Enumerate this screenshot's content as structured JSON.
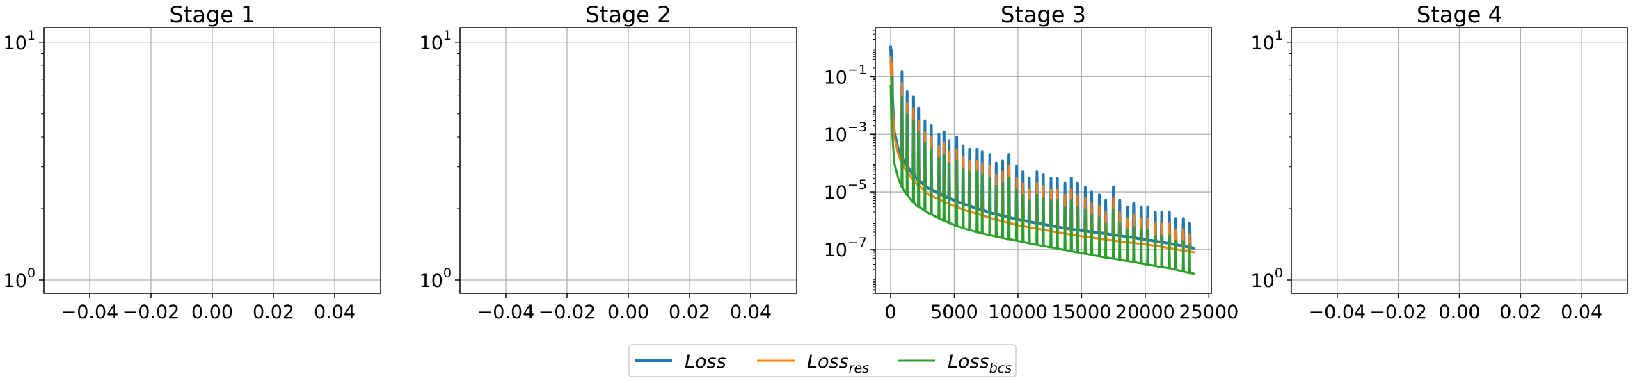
{
  "chart_data": [
    {
      "type": "line",
      "title": "Stage 1",
      "yscale": "log",
      "xlim": [
        -0.055,
        0.055
      ],
      "ylim": [
        0.88,
        11.5
      ],
      "xticks": [
        -0.04,
        -0.02,
        0.0,
        0.02,
        0.04
      ],
      "xtick_labels": [
        "−0.04",
        "−0.02",
        "0.00",
        "0.02",
        "0.04"
      ],
      "yticks": [
        1,
        10
      ],
      "ytick_labels": [
        {
          "base": "10",
          "exp": "0"
        },
        {
          "base": "10",
          "exp": "1"
        }
      ],
      "grid": true,
      "series": []
    },
    {
      "type": "line",
      "title": "Stage 2",
      "yscale": "log",
      "xlim": [
        -0.055,
        0.055
      ],
      "ylim": [
        0.88,
        11.5
      ],
      "xticks": [
        -0.04,
        -0.02,
        0.0,
        0.02,
        0.04
      ],
      "xtick_labels": [
        "−0.04",
        "−0.02",
        "0.00",
        "0.02",
        "0.04"
      ],
      "yticks": [
        1,
        10
      ],
      "ytick_labels": [
        {
          "base": "10",
          "exp": "0"
        },
        {
          "base": "10",
          "exp": "1"
        }
      ],
      "grid": true,
      "series": []
    },
    {
      "type": "line",
      "title": "Stage 3",
      "yscale": "log",
      "xlim": [
        -1200,
        25200
      ],
      "ylim": [
        3e-09,
        5
      ],
      "xticks": [
        0,
        5000,
        10000,
        15000,
        20000,
        25000
      ],
      "xtick_labels": [
        "0",
        "5000",
        "10000",
        "15000",
        "20000",
        "25000"
      ],
      "yticks": [
        1e-07,
        1e-05,
        0.001,
        0.1
      ],
      "ytick_labels": [
        {
          "base": "10",
          "exp": "−7"
        },
        {
          "base": "10",
          "exp": "−5"
        },
        {
          "base": "10",
          "exp": "−3"
        },
        {
          "base": "10",
          "exp": "−1"
        }
      ],
      "grid": true,
      "series": [
        {
          "key": "loss",
          "color": "#1f77b4",
          "x": [
            0,
            150,
            300,
            600,
            1000,
            1500,
            2000,
            3000,
            4000,
            5000,
            6000,
            7000,
            8000,
            9000,
            10000,
            11000,
            12000,
            13000,
            14000,
            15000,
            16000,
            17000,
            18000,
            19000,
            20000,
            21000,
            22000,
            23000,
            23900
          ],
          "y": [
            1.2,
            0.02,
            0.0012,
            0.0003,
            0.00012,
            6e-05,
            3e-05,
            1.3e-05,
            8e-06,
            5e-06,
            3.5e-06,
            2.5e-06,
            1.8e-06,
            1.4e-06,
            1.1e-06,
            9e-07,
            7.5e-07,
            6.2e-07,
            5.2e-07,
            4.5e-07,
            4e-07,
            3.5e-07,
            3e-07,
            2.6e-07,
            2.2e-07,
            1.9e-07,
            1.6e-07,
            1.3e-07,
            1.1e-07
          ],
          "spikes_x": [
            100,
            900,
            1300,
            1800,
            2200,
            2700,
            3200,
            3800,
            4200,
            4600,
            5200,
            5700,
            6200,
            6800,
            7200,
            7800,
            8300,
            8800,
            9300,
            9900,
            10400,
            10900,
            11500,
            12000,
            12600,
            13100,
            13700,
            14200,
            14700,
            15300,
            15800,
            16400,
            16900,
            17500,
            18000,
            18600,
            19100,
            19700,
            20200,
            20800,
            21300,
            21900,
            22400,
            23000,
            23500
          ],
          "spikes_y": [
            0.8,
            0.15,
            0.03,
            0.02,
            0.008,
            0.003,
            0.002,
            0.001,
            0.0012,
            0.0006,
            0.0008,
            0.0004,
            0.0003,
            0.0003,
            0.00025,
            0.0002,
            0.0001,
            0.00012,
            0.0002,
            8e-05,
            5e-05,
            3e-05,
            5e-05,
            4e-05,
            3e-05,
            3e-05,
            2e-05,
            3e-05,
            2e-05,
            1.5e-05,
            1e-05,
            8e-06,
            5e-06,
            1.5e-05,
            5e-06,
            3e-06,
            4e-06,
            3e-06,
            3e-06,
            2e-06,
            2e-06,
            2e-06,
            1.2e-06,
            1.2e-06,
            8e-07
          ]
        },
        {
          "key": "res",
          "color": "#ff7f0e",
          "x": [
            0,
            150,
            300,
            600,
            1000,
            1500,
            2000,
            3000,
            4000,
            5000,
            6000,
            7000,
            8000,
            9000,
            10000,
            11000,
            12000,
            13000,
            14000,
            15000,
            16000,
            17000,
            18000,
            19000,
            20000,
            21000,
            22000,
            23000,
            23900
          ],
          "y": [
            0.5,
            0.01,
            0.0008,
            0.0002,
            8e-05,
            3.8e-05,
            2e-05,
            8e-06,
            5e-06,
            3.2e-06,
            2.2e-06,
            1.6e-06,
            1.2e-06,
            9e-07,
            7e-07,
            5.8e-07,
            4.8e-07,
            4e-07,
            3.4e-07,
            2.9e-07,
            2.5e-07,
            2.2e-07,
            1.9e-07,
            1.7e-07,
            1.5e-07,
            1.3e-07,
            1.1e-07,
            9e-08,
            8e-08
          ],
          "spikes_x": [
            100,
            900,
            1300,
            1800,
            2200,
            2700,
            3200,
            3800,
            4200,
            4600,
            5200,
            5700,
            6200,
            6800,
            7200,
            7800,
            8300,
            8800,
            9300,
            9900,
            10400,
            10900,
            11500,
            12000,
            12600,
            13100,
            13700,
            14200,
            14700,
            15300,
            15800,
            16400,
            16900,
            17500,
            18000,
            18600,
            19100,
            19700,
            20200,
            20800,
            21300,
            21900,
            22400,
            23000,
            23500
          ],
          "spikes_y": [
            0.3,
            0.06,
            0.012,
            0.008,
            0.003,
            0.0012,
            0.0008,
            0.0004,
            0.0005,
            0.00025,
            0.0003,
            0.00016,
            0.00012,
            0.00012,
            0.0001,
            8e-05,
            4e-05,
            5e-05,
            8e-05,
            3e-05,
            2e-05,
            1.2e-05,
            2e-05,
            1.6e-05,
            1.2e-05,
            1.2e-05,
            8e-06,
            1.2e-05,
            8e-06,
            6e-06,
            4e-06,
            3.2e-06,
            2e-06,
            6e-06,
            2e-06,
            1.2e-06,
            1.6e-06,
            1.2e-06,
            1.2e-06,
            8e-07,
            8e-07,
            8e-07,
            5e-07,
            5e-07,
            3.5e-07
          ]
        },
        {
          "key": "bcs",
          "color": "#2ca02c",
          "x": [
            0,
            150,
            300,
            600,
            1000,
            1500,
            2000,
            3000,
            4000,
            5000,
            6000,
            7000,
            8000,
            9000,
            10000,
            11000,
            12000,
            13000,
            14000,
            15000,
            16000,
            17000,
            18000,
            19000,
            20000,
            21000,
            22000,
            23000,
            23900
          ],
          "y": [
            0.05,
            0.0008,
            0.0001,
            3e-05,
            1.2e-05,
            6e-06,
            3.5e-06,
            1.8e-06,
            1.1e-06,
            7e-07,
            5e-07,
            3.8e-07,
            3e-07,
            2.4e-07,
            2e-07,
            1.6e-07,
            1.3e-07,
            1.1e-07,
            9e-08,
            7.5e-08,
            6.2e-08,
            5.2e-08,
            4.4e-08,
            3.7e-08,
            3.1e-08,
            2.6e-08,
            2.2e-08,
            1.7e-08,
            1.4e-08
          ],
          "spikes_x": [
            100,
            900,
            1300,
            1800,
            2200,
            2700,
            3200,
            3800,
            4200,
            4600,
            5200,
            5700,
            6200,
            6800,
            7200,
            7800,
            8300,
            8800,
            9300,
            9900,
            10400,
            10900,
            11500,
            12000,
            12600,
            13100,
            13700,
            14200,
            14700,
            15300,
            15800,
            16400,
            16900,
            17500,
            18000,
            18600,
            19100,
            19700,
            20200,
            20800,
            21300,
            21900,
            22400,
            23000,
            23500
          ],
          "spikes_y": [
            0.1,
            0.02,
            0.005,
            0.003,
            0.0012,
            0.0005,
            0.0003,
            0.00015,
            0.0002,
            0.0001,
            0.00012,
            6e-05,
            5e-05,
            5e-05,
            4e-05,
            3e-05,
            1.6e-05,
            2e-05,
            3e-05,
            1.2e-05,
            8e-06,
            5e-06,
            8e-06,
            6e-06,
            5e-06,
            5e-06,
            3e-06,
            5e-06,
            3e-06,
            2.5e-06,
            1.6e-06,
            1.3e-06,
            8e-07,
            2.5e-06,
            8e-07,
            5e-07,
            6e-07,
            5e-07,
            5e-07,
            3e-07,
            3e-07,
            3e-07,
            2e-07,
            2e-07,
            1.5e-07
          ]
        }
      ]
    },
    {
      "type": "line",
      "title": "Stage 4",
      "yscale": "log",
      "xlim": [
        -0.055,
        0.055
      ],
      "ylim": [
        0.88,
        11.5
      ],
      "xticks": [
        -0.04,
        -0.02,
        0.0,
        0.02,
        0.04
      ],
      "xtick_labels": [
        "−0.04",
        "−0.02",
        "0.00",
        "0.02",
        "0.04"
      ],
      "yticks": [
        1,
        10
      ],
      "ytick_labels": [
        {
          "base": "10",
          "exp": "0"
        },
        {
          "base": "10",
          "exp": "1"
        }
      ],
      "grid": true,
      "series": []
    }
  ],
  "legend": {
    "placement": "bottom-center",
    "entries": [
      {
        "key": "loss",
        "label": "Loss",
        "sub": "",
        "color": "#1f77b4"
      },
      {
        "key": "res",
        "label": "Loss",
        "sub": "res",
        "color": "#ff7f0e"
      },
      {
        "key": "bcs",
        "label": "Loss",
        "sub": "bcs",
        "color": "#2ca02c"
      }
    ]
  }
}
